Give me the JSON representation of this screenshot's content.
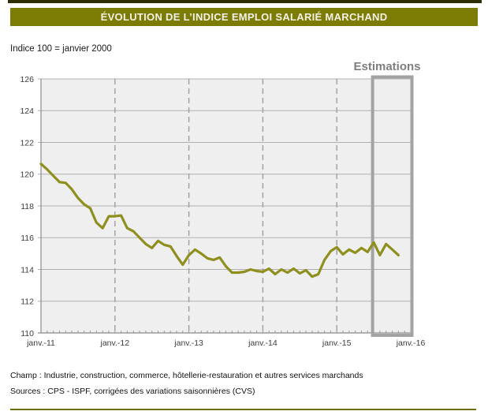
{
  "page": {
    "title": "ÉVOLUTION DE L’INDICE EMPLOI SALARIÉ MARCHAND",
    "subtitle": "Indice 100 = janvier 2000",
    "estimations_label": "Estimations",
    "footer": {
      "champ": "Champ : Industrie, construction, commerce, hôtellerie-restauration et autres services marchands",
      "sources": "Sources : CPS - ISPF, corrigées des variations saisonnières (CVS)"
    }
  },
  "colors": {
    "line": "#8e8f1c",
    "title_bar_bg": "#7c7b04",
    "title_text": "#f4f2e7",
    "top_bar": "#2f2d05",
    "bottom_rule": "#6f6d02",
    "plot_bg": "#efeff0",
    "gridline": "#b0b0b0",
    "dashed_line": "#9e9e9e",
    "axis": "#8c8c8c",
    "minor_tick": "#9a9a9a",
    "estimation_box_border": "#a3a3a3",
    "estimations_text": "#7e7e7e"
  },
  "chart_data": {
    "type": "line",
    "title": "ÉVOLUTION DE L’INDICE EMPLOI SALARIÉ MARCHAND",
    "unit_note": "Indice 100 = janvier 2000",
    "frequency": "monthly",
    "x_start": "janv.-11",
    "x_end": "nov.-15",
    "x_tick_labels": [
      "janv.-11",
      "janv.-12",
      "janv.-13",
      "janv.-14",
      "janv.-15",
      "janv.-16"
    ],
    "x_tick_month_positions": [
      0,
      12,
      24,
      36,
      48,
      60
    ],
    "months_total": 60,
    "y_ticks": [
      126,
      124,
      122,
      120,
      118,
      116,
      114,
      112,
      110
    ],
    "ylim": [
      110,
      126
    ],
    "grid": true,
    "legend_position": "none",
    "estimation_zone": {
      "label": "Estimations",
      "start_month": 54,
      "end_month": 60
    },
    "series": [
      {
        "name": "Indice emploi salarié marchand (CVS)",
        "values": [
          120.65,
          120.3,
          119.9,
          119.5,
          119.45,
          119.05,
          118.5,
          118.1,
          117.85,
          116.95,
          116.6,
          117.35,
          117.35,
          117.4,
          116.6,
          116.4,
          116.0,
          115.6,
          115.35,
          115.8,
          115.55,
          115.45,
          114.85,
          114.3,
          114.9,
          115.25,
          115.0,
          114.7,
          114.6,
          114.75,
          114.2,
          113.8,
          113.8,
          113.85,
          114.0,
          113.9,
          113.85,
          114.05,
          113.7,
          114.0,
          113.8,
          114.05,
          113.75,
          113.95,
          113.55,
          113.7,
          114.6,
          115.15,
          115.4,
          114.95,
          115.25,
          115.05,
          115.35,
          115.1,
          115.7,
          114.9,
          115.6,
          115.25,
          114.9
        ]
      }
    ]
  }
}
